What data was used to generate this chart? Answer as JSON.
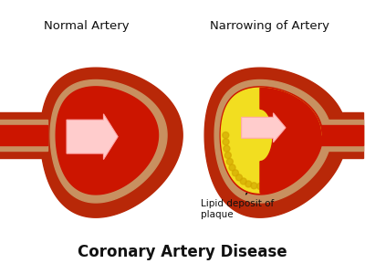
{
  "title": "Coronary Artery Disease",
  "title_fontsize": 12,
  "title_fontweight": "bold",
  "label_left": "Normal Artery",
  "label_right": "Narrowing of Artery",
  "label_fontsize": 9.5,
  "annotation_text": "Lipid deposit of\nplaque",
  "annotation_fontsize": 7.5,
  "bg_color": "#ffffff",
  "outer_red": "#c03010",
  "mid_tan": "#c89060",
  "inner_red": "#aa1800",
  "lumen_red": "#cc1500",
  "arrow_fc": "#ffcccc",
  "arrow_ec": "#ffaaaa",
  "plaque_yellow": "#f2de20",
  "plaque_edge": "#c8aa00",
  "text_color": "#111111"
}
